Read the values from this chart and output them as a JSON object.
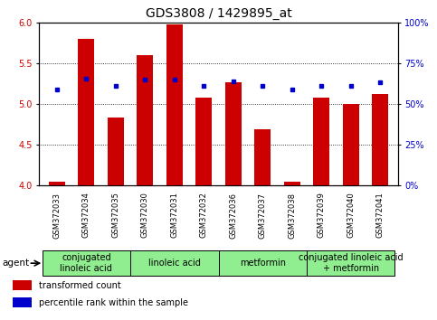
{
  "title": "GDS3808 / 1429895_at",
  "samples": [
    "GSM372033",
    "GSM372034",
    "GSM372035",
    "GSM372030",
    "GSM372031",
    "GSM372032",
    "GSM372036",
    "GSM372037",
    "GSM372038",
    "GSM372039",
    "GSM372040",
    "GSM372041"
  ],
  "transformed_count": [
    4.05,
    5.8,
    4.83,
    5.6,
    5.97,
    5.08,
    5.27,
    4.69,
    4.05,
    5.08,
    5.0,
    5.12
  ],
  "percentile_rank_left": [
    5.18,
    5.31,
    5.22,
    5.3,
    5.3,
    5.22,
    5.28,
    5.22,
    5.18,
    5.22,
    5.22,
    5.27
  ],
  "ylim_left": [
    4.0,
    6.0
  ],
  "ylim_right": [
    0,
    100
  ],
  "yticks_left": [
    4.0,
    4.5,
    5.0,
    5.5,
    6.0
  ],
  "yticks_right": [
    0,
    25,
    50,
    75,
    100
  ],
  "ytick_labels_right": [
    "0%",
    "25%",
    "50%",
    "75%",
    "100%"
  ],
  "bar_color": "#cc0000",
  "dot_color": "#0000cc",
  "bar_bottom": 4.0,
  "groups": [
    {
      "label": "conjugated\nlinoleic acid",
      "start": 0,
      "end": 3,
      "color": "#90ee90"
    },
    {
      "label": "linoleic acid",
      "start": 3,
      "end": 6,
      "color": "#90ee90"
    },
    {
      "label": "metformin",
      "start": 6,
      "end": 9,
      "color": "#90ee90"
    },
    {
      "label": "conjugated linoleic acid\n+ metformin",
      "start": 9,
      "end": 12,
      "color": "#90ee90"
    }
  ],
  "agent_label": "agent",
  "legend_items": [
    {
      "color": "#cc0000",
      "label": "transformed count"
    },
    {
      "color": "#0000cc",
      "label": "percentile rank within the sample"
    }
  ],
  "bg_color": "#ffffff",
  "sample_bg_color": "#c8c8c8",
  "tick_label_color_left": "#cc0000",
  "tick_label_color_right": "#0000cc",
  "title_fontsize": 10,
  "tick_fontsize": 7,
  "sample_fontsize": 6,
  "group_fontsize": 7,
  "legend_fontsize": 7,
  "agent_fontsize": 7.5,
  "bar_width": 0.55
}
